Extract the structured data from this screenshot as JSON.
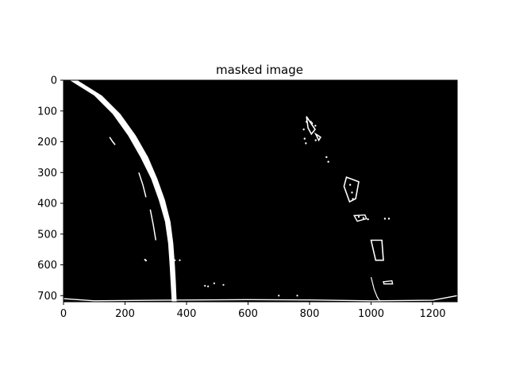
{
  "chart_data": {
    "type": "image",
    "title": "masked image",
    "xlabel": "",
    "ylabel": "",
    "xlim": [
      0,
      1280
    ],
    "ylim": [
      720,
      0
    ],
    "xticks": [
      0,
      200,
      400,
      600,
      800,
      1000,
      1200
    ],
    "yticks": [
      0,
      100,
      200,
      300,
      400,
      500,
      600,
      700
    ],
    "background": "#000000",
    "foreground": "#ffffff",
    "grid": false,
    "legend": "none",
    "features": {
      "left_lane": {
        "outer": [
          [
            20,
            0
          ],
          [
            100,
            50
          ],
          [
            160,
            110
          ],
          [
            210,
            180
          ],
          [
            250,
            250
          ],
          [
            285,
            320
          ],
          [
            310,
            390
          ],
          [
            330,
            460
          ],
          [
            340,
            530
          ],
          [
            345,
            600
          ],
          [
            348,
            650
          ],
          [
            352,
            720
          ]
        ],
        "inner": [
          [
            45,
            0
          ],
          [
            125,
            50
          ],
          [
            185,
            110
          ],
          [
            235,
            180
          ],
          [
            275,
            250
          ],
          [
            305,
            320
          ],
          [
            330,
            390
          ],
          [
            348,
            460
          ],
          [
            357,
            530
          ],
          [
            362,
            600
          ],
          [
            365,
            650
          ],
          [
            368,
            720
          ]
        ]
      },
      "left_lane_fragments": [
        [
          [
            150,
            185
          ],
          [
            160,
            200
          ],
          [
            168,
            210
          ]
        ],
        [
          [
            245,
            300
          ],
          [
            258,
            340
          ],
          [
            268,
            380
          ]
        ],
        [
          [
            282,
            420
          ],
          [
            292,
            470
          ],
          [
            300,
            520
          ]
        ]
      ],
      "right_dashes": [
        [
          [
            790,
            118
          ],
          [
            795,
            155
          ],
          [
            806,
            175
          ],
          [
            818,
            160
          ]
        ],
        [
          [
            820,
            175
          ],
          [
            830,
            195
          ],
          [
            836,
            185
          ]
        ],
        [
          [
            920,
            315
          ],
          [
            960,
            330
          ],
          [
            950,
            385
          ],
          [
            930,
            395
          ],
          [
            912,
            345
          ]
        ],
        [
          [
            1000,
            520
          ],
          [
            1035,
            520
          ],
          [
            1040,
            585
          ],
          [
            1015,
            585
          ]
        ]
      ],
      "right_dots": [
        [
          781,
          160
        ],
        [
          784,
          190
        ],
        [
          788,
          205
        ],
        [
          790,
          135
        ],
        [
          804,
          135
        ],
        [
          808,
          140
        ],
        [
          819,
          148
        ],
        [
          820,
          195
        ],
        [
          855,
          250
        ],
        [
          861,
          265
        ],
        [
          932,
          340
        ],
        [
          938,
          365
        ],
        [
          941,
          386
        ],
        [
          960,
          444
        ],
        [
          975,
          448
        ],
        [
          990,
          452
        ],
        [
          1045,
          450
        ],
        [
          1058,
          450
        ]
      ],
      "right_outlines": [
        [
          [
            945,
            440
          ],
          [
            980,
            438
          ],
          [
            985,
            450
          ],
          [
            955,
            458
          ]
        ],
        [
          [
            1040,
            655
          ],
          [
            1068,
            652
          ],
          [
            1070,
            662
          ],
          [
            1042,
            662
          ]
        ]
      ],
      "right_trail": [
        [
          1000,
          640
        ],
        [
          1010,
          680
        ],
        [
          1020,
          705
        ],
        [
          1030,
          720
        ]
      ],
      "bottom_edge": [
        [
          0,
          710
        ],
        [
          100,
          717
        ],
        [
          300,
          715
        ],
        [
          600,
          713
        ],
        [
          800,
          714
        ],
        [
          1000,
          717
        ],
        [
          1200,
          715
        ],
        [
          1280,
          700
        ]
      ],
      "specks": [
        [
          265,
          583
        ],
        [
          268,
          586
        ],
        [
          362,
          585
        ],
        [
          378,
          585
        ],
        [
          460,
          668
        ],
        [
          470,
          670
        ],
        [
          490,
          660
        ],
        [
          520,
          665
        ],
        [
          700,
          700
        ],
        [
          760,
          700
        ]
      ]
    }
  }
}
